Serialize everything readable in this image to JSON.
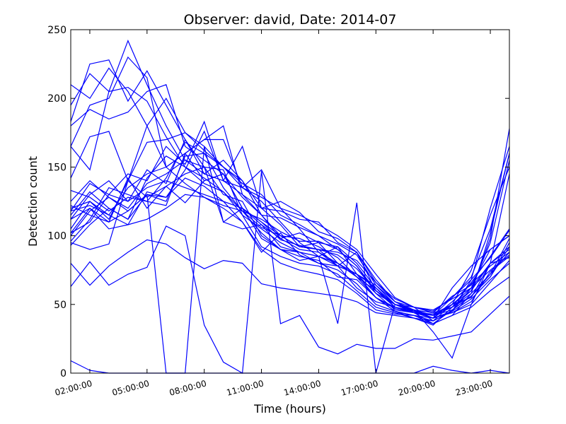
{
  "chart_data": {
    "type": "line",
    "title": "Observer: david, Date: 2014-07",
    "xlabel": "Time (hours)",
    "ylabel": "Detection count",
    "x_hours": [
      1,
      2,
      3,
      4,
      5,
      6,
      7,
      8,
      9,
      10,
      11,
      12,
      13,
      14,
      15,
      16,
      17,
      18,
      19,
      20,
      21,
      22,
      23,
      24
    ],
    "xlim": [
      1,
      24
    ],
    "ylim": [
      0,
      250
    ],
    "xticks": [
      2,
      5,
      8,
      11,
      14,
      17,
      20,
      23
    ],
    "xtick_labels": [
      "02:00:00",
      "05:00:00",
      "08:00:00",
      "11:00:00",
      "14:00:00",
      "17:00:00",
      "20:00:00",
      "23:00:00"
    ],
    "yticks": [
      0,
      50,
      100,
      150,
      200,
      250
    ],
    "ytick_labels": [
      "0",
      "50",
      "100",
      "150",
      "200",
      "250"
    ],
    "grid": false,
    "line_color": "#0000ff",
    "series": [
      {
        "values": [
          210,
          200,
          222,
          205,
          180,
          200,
          175,
          162,
          150,
          135,
          125,
          110,
          95,
          85,
          78,
          72,
          55,
          48,
          45,
          42,
          55,
          70,
          105,
          160
        ]
      },
      {
        "values": [
          195,
          218,
          205,
          242,
          210,
          180,
          155,
          145,
          140,
          130,
          115,
          100,
          92,
          95,
          80,
          70,
          60,
          50,
          48,
          38,
          50,
          75,
          115,
          150
        ]
      },
      {
        "values": [
          183,
          225,
          228,
          198,
          220,
          195,
          170,
          150,
          130,
          125,
          100,
          90,
          88,
          80,
          75,
          65,
          50,
          45,
          40,
          35,
          48,
          60,
          98,
          178
        ]
      },
      {
        "values": [
          165,
          195,
          200,
          230,
          215,
          150,
          160,
          140,
          145,
          120,
          98,
          90,
          85,
          82,
          70,
          68,
          55,
          45,
          42,
          38,
          45,
          68,
          120,
          165
        ]
      },
      {
        "values": [
          180,
          192,
          185,
          190,
          205,
          210,
          165,
          155,
          145,
          120,
          110,
          97,
          93,
          90,
          78,
          62,
          52,
          48,
          45,
          40,
          50,
          55,
          80,
          145
        ]
      },
      {
        "values": [
          165,
          148,
          205,
          208,
          198,
          172,
          150,
          142,
          132,
          115,
          92,
          85,
          80,
          78,
          72,
          60,
          48,
          44,
          40,
          38,
          45,
          62,
          95,
          155
        ]
      },
      {
        "values": [
          142,
          172,
          176,
          140,
          180,
          150,
          138,
          128,
          120,
          110,
          90,
          80,
          75,
          72,
          68,
          58,
          46,
          43,
          42,
          36,
          42,
          58,
          102,
          160
        ]
      },
      {
        "values": [
          120,
          125,
          112,
          140,
          168,
          170,
          175,
          165,
          150,
          138,
          130,
          115,
          108,
          100,
          90,
          78,
          60,
          50,
          46,
          44,
          48,
          66,
          85,
          105
        ]
      },
      {
        "values": [
          118,
          138,
          130,
          145,
          140,
          165,
          152,
          183,
          140,
          135,
          128,
          120,
          105,
          88,
          78,
          72,
          58,
          46,
          44,
          42,
          50,
          60,
          80,
          90
        ]
      },
      {
        "values": [
          112,
          130,
          140,
          125,
          148,
          138,
          170,
          145,
          155,
          140,
          115,
          98,
          102,
          95,
          92,
          80,
          62,
          48,
          45,
          40,
          52,
          65,
          78,
          88
        ]
      },
      {
        "values": [
          105,
          125,
          115,
          135,
          145,
          150,
          160,
          170,
          180,
          130,
          120,
          108,
          92,
          90,
          88,
          82,
          66,
          52,
          45,
          42,
          48,
          58,
          72,
          98
        ]
      },
      {
        "values": [
          100,
          118,
          128,
          120,
          138,
          145,
          155,
          150,
          148,
          115,
          105,
          95,
          88,
          85,
          80,
          72,
          64,
          50,
          46,
          42,
          46,
          56,
          70,
          92
        ]
      },
      {
        "values": [
          96,
          112,
          135,
          130,
          125,
          142,
          168,
          160,
          135,
          118,
          106,
          100,
          98,
          92,
          84,
          70,
          55,
          47,
          44,
          40,
          44,
          52,
          74,
          85
        ]
      },
      {
        "values": [
          93,
          108,
          120,
          112,
          142,
          158,
          150,
          138,
          132,
          118,
          112,
          103,
          96,
          96,
          90,
          78,
          58,
          50,
          44,
          43,
          50,
          62,
          80,
          92
        ]
      },
      {
        "values": [
          125,
          140,
          128,
          118,
          130,
          125,
          158,
          160,
          150,
          140,
          120,
          118,
          112,
          110,
          95,
          88,
          66,
          54,
          48,
          45,
          55,
          68,
          84,
          104
        ]
      },
      {
        "values": [
          133,
          128,
          118,
          128,
          125,
          122,
          160,
          170,
          170,
          135,
          148,
          120,
          115,
          108,
          100,
          90,
          72,
          55,
          48,
          46,
          54,
          62,
          75,
          86
        ]
      },
      {
        "values": [
          118,
          122,
          115,
          108,
          132,
          128,
          148,
          176,
          140,
          165,
          120,
          125,
          117,
          103,
          98,
          88,
          68,
          52,
          48,
          44,
          56,
          64,
          90,
          100
        ]
      },
      {
        "values": [
          122,
          115,
          110,
          142,
          120,
          136,
          124,
          140,
          145,
          128,
          115,
          113,
          106,
          100,
          94,
          86,
          64,
          52,
          46,
          42,
          48,
          56,
          72,
          88
        ]
      },
      {
        "values": [
          102,
          110,
          130,
          125,
          135,
          140,
          135,
          130,
          125,
          120,
          110,
          100,
          92,
          90,
          86,
          76,
          60,
          50,
          46,
          40,
          45,
          54,
          68,
          80
        ]
      },
      {
        "values": [
          95,
          90,
          94,
          140,
          128,
          136,
          145,
          150,
          110,
          105,
          108,
          98,
          90,
          88,
          80,
          70,
          55,
          45,
          42,
          40,
          44,
          50,
          66,
          82
        ]
      },
      {
        "values": [
          80,
          64,
          78,
          88,
          97,
          94,
          84,
          76,
          82,
          80,
          65,
          62,
          60,
          58,
          56,
          52,
          44,
          42,
          40,
          36,
          42,
          48,
          60,
          70
        ]
      },
      {
        "values": [
          63,
          81,
          64,
          72,
          77,
          107,
          100,
          35,
          8,
          0,
          147,
          36,
          42,
          19,
          14,
          21,
          18,
          18,
          25,
          24,
          27,
          30,
          43,
          56
        ]
      },
      {
        "values": [
          112,
          120,
          110,
          118,
          130,
          0,
          0,
          165,
          110,
          120,
          108,
          92,
          88,
          85,
          36,
          124,
          0,
          50,
          45,
          40,
          62,
          78,
          90,
          100
        ]
      },
      {
        "values": [
          9,
          2,
          0,
          0,
          0,
          0,
          0,
          0,
          0,
          0,
          0,
          0,
          0,
          0,
          0,
          0,
          0,
          0,
          0,
          5,
          2,
          0,
          2,
          0
        ]
      },
      {
        "values": [
          102,
          120,
          105,
          108,
          112,
          120,
          130,
          128,
          122,
          118,
          102,
          90,
          82,
          85,
          92,
          72,
          62,
          50,
          46,
          30,
          11,
          50,
          80,
          84
        ]
      },
      {
        "values": [
          115,
          132,
          120,
          112,
          130,
          128,
          142,
          136,
          125,
          110,
          88,
          102,
          86,
          80,
          78,
          88,
          60,
          48,
          44,
          36,
          46,
          56,
          70,
          95
        ]
      }
    ]
  }
}
